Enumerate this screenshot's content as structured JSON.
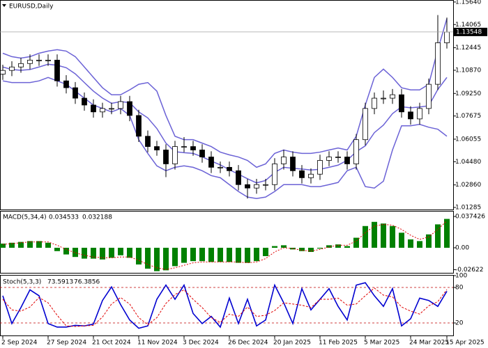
{
  "chart_data": [
    {
      "type": "candlestick",
      "title": "EURUSD,Daily",
      "open": [
        1.106,
        1.1086,
        1.111,
        1.1134,
        1.1158,
        1.1158,
        1.1158,
        1.1013,
        1.0965,
        1.0892,
        1.0844,
        1.0796,
        1.082,
        1.082,
        1.0868,
        1.0771,
        1.0626,
        1.0554,
        1.053,
        1.0433,
        1.0554,
        1.0554,
        1.053,
        1.0481,
        1.0409,
        1.0409,
        1.0385,
        1.0288,
        1.0264,
        1.0288,
        1.0288,
        1.0433,
        1.0481,
        1.0385,
        1.0336,
        1.0361,
        1.0457,
        1.0481,
        1.0481,
        1.0433,
        1.0602,
        1.082,
        1.0892,
        1.0892,
        1.0916,
        1.0796,
        1.0747,
        1.082,
        1.0989,
        1.1279
      ],
      "high": [
        1.1126,
        1.115,
        1.1174,
        1.1198,
        1.1198,
        1.1198,
        1.1198,
        1.1053,
        1.1005,
        1.0932,
        1.0884,
        1.086,
        1.086,
        1.0908,
        1.0908,
        1.0811,
        1.0666,
        1.0594,
        1.057,
        1.0594,
        1.062,
        1.0594,
        1.057,
        1.0521,
        1.0449,
        1.0449,
        1.0425,
        1.0328,
        1.0328,
        1.0328,
        1.0473,
        1.0532,
        1.0521,
        1.0425,
        1.0401,
        1.0497,
        1.0521,
        1.0521,
        1.0521,
        1.0642,
        1.086,
        1.0932,
        1.0946,
        1.0956,
        1.0956,
        1.0836,
        1.086,
        1.1029,
        1.1473,
        1.1455
      ],
      "low": [
        1.102,
        1.1046,
        1.107,
        1.1094,
        1.1118,
        1.1118,
        1.0973,
        1.0925,
        1.0852,
        1.0804,
        1.0756,
        1.0756,
        1.078,
        1.078,
        1.0731,
        1.0586,
        1.0514,
        1.049,
        1.034,
        1.0393,
        1.0514,
        1.049,
        1.0441,
        1.0369,
        1.0369,
        1.0345,
        1.0248,
        1.0191,
        1.0224,
        1.0248,
        1.0248,
        1.0393,
        1.0345,
        1.0296,
        1.0296,
        1.0321,
        1.0417,
        1.0441,
        1.0393,
        1.0393,
        1.0562,
        1.078,
        1.0852,
        1.0852,
        1.0756,
        1.0707,
        1.0707,
        1.078,
        1.0949,
        1.1239
      ],
      "close": [
        1.1086,
        1.111,
        1.1134,
        1.1158,
        1.1158,
        1.1158,
        1.1013,
        1.0965,
        1.0892,
        1.0844,
        1.0796,
        1.082,
        1.082,
        1.0868,
        1.0771,
        1.0626,
        1.0554,
        1.053,
        1.0433,
        1.0554,
        1.0554,
        1.053,
        1.0481,
        1.0409,
        1.0409,
        1.0385,
        1.0288,
        1.0264,
        1.0288,
        1.0288,
        1.0433,
        1.0481,
        1.0385,
        1.0336,
        1.0361,
        1.0457,
        1.0481,
        1.0481,
        1.0433,
        1.0602,
        1.082,
        1.0892,
        1.0892,
        1.0916,
        1.0796,
        1.0747,
        1.082,
        1.0989,
        1.1279,
        1.13548
      ],
      "bands": [
        {
          "color": "#6b62d6",
          "values": [
            1.1206,
            1.1182,
            1.1172,
            1.1182,
            1.1206,
            1.1221,
            1.1231,
            1.1221,
            1.1182,
            1.111,
            1.1037,
            1.0965,
            1.0916,
            1.0916,
            1.095,
            1.0989,
            1.1001,
            1.0941,
            1.0771,
            1.0626,
            1.0602,
            1.0602,
            1.0578,
            1.0554,
            1.0515,
            1.0496,
            1.0481,
            1.0457,
            1.0409,
            1.0433,
            1.0506,
            1.053,
            1.0515,
            1.0506,
            1.0506,
            1.0515,
            1.053,
            1.0544,
            1.053,
            1.0626,
            1.0844,
            1.1037,
            1.1095,
            1.1037,
            1.0965,
            1.095,
            1.095,
            1.0989,
            1.1231,
            1.1448
          ]
        },
        {
          "color": "#6b62d6",
          "values": [
            1.111,
            1.1092,
            1.1087,
            1.1092,
            1.111,
            1.1129,
            1.1122,
            1.1105,
            1.1062,
            1.1001,
            1.0941,
            1.0893,
            1.0856,
            1.0868,
            1.0861,
            1.0796,
            1.0754,
            1.068,
            1.0578,
            1.0518,
            1.0511,
            1.0506,
            1.0482,
            1.0453,
            1.0426,
            1.0392,
            1.0361,
            1.0329,
            1.03,
            1.0317,
            1.0373,
            1.0409,
            1.0402,
            1.0397,
            1.039,
            1.0395,
            1.0409,
            1.0424,
            1.0458,
            1.0518,
            1.0559,
            1.0651,
            1.0704,
            1.0784,
            1.0832,
            1.0825,
            1.083,
            1.0839,
            1.0953,
            1.1037
          ]
        },
        {
          "color": "#6b62d6",
          "values": [
            1.1013,
            1.1001,
            1.1001,
            1.1001,
            1.1013,
            1.1037,
            1.1013,
            1.0989,
            1.0941,
            1.0892,
            1.0844,
            1.082,
            1.0796,
            1.082,
            1.0771,
            1.0602,
            1.0506,
            1.0419,
            1.0385,
            1.0409,
            1.0419,
            1.0409,
            1.0385,
            1.0351,
            1.0336,
            1.0288,
            1.024,
            1.0201,
            1.0191,
            1.0201,
            1.024,
            1.0288,
            1.0288,
            1.0288,
            1.0274,
            1.0274,
            1.0288,
            1.0303,
            1.0385,
            1.0409,
            1.0274,
            1.0264,
            1.0312,
            1.053,
            1.0699,
            1.0699,
            1.0709,
            1.0689,
            1.0675,
            1.0626
          ]
        }
      ],
      "ylim": [
        1.0119,
        1.1578
      ],
      "yticks": [
        {
          "value": 1.1564,
          "label": "1.15640"
        },
        {
          "value": 1.14065,
          "label": "1.14065"
        },
        {
          "value": 1.12445,
          "label": "1.12445"
        },
        {
          "value": 1.1087,
          "label": "1.10870"
        },
        {
          "value": 1.0925,
          "label": "1.09250"
        },
        {
          "value": 1.07675,
          "label": "1.07675"
        },
        {
          "value": 1.06055,
          "label": "1.06055"
        },
        {
          "value": 1.0448,
          "label": "1.04480"
        },
        {
          "value": 1.0286,
          "label": "1.02860"
        },
        {
          "value": 1.01285,
          "label": "1.01285"
        }
      ]
    },
    {
      "type": "bar",
      "title": "MACD(5,34,4)",
      "series": [
        {
          "color": "#008000",
          "values": [
            0.005,
            0.006,
            0.007,
            0.008,
            0.008,
            0.006,
            -0.004,
            -0.008,
            -0.011,
            -0.013,
            -0.013,
            -0.014,
            -0.012,
            -0.009,
            -0.012,
            -0.02,
            -0.025,
            -0.028,
            -0.027,
            -0.022,
            -0.018,
            -0.016,
            -0.016,
            -0.017,
            -0.017,
            -0.017,
            -0.018,
            -0.018,
            -0.016,
            -0.01,
            0.002,
            0.003,
            -0.002,
            -0.004,
            -0.005,
            -0.001,
            0.003,
            0.004,
            0.002,
            0.012,
            0.026,
            0.031,
            0.029,
            0.026,
            0.018,
            0.01,
            0.008,
            0.016,
            0.028,
            0.034533
          ]
        },
        {
          "color": "#e00000",
          "type": "line",
          "values": [
            0.004,
            0.005,
            0.006,
            0.007,
            0.007,
            0.007,
            0.003,
            -0.002,
            -0.006,
            -0.009,
            -0.011,
            -0.012,
            -0.012,
            -0.011,
            -0.011,
            -0.015,
            -0.02,
            -0.024,
            -0.026,
            -0.024,
            -0.021,
            -0.018,
            -0.017,
            -0.017,
            -0.017,
            -0.017,
            -0.017,
            -0.018,
            -0.017,
            -0.013,
            -0.005,
            0.0,
            -0.001,
            -0.003,
            -0.004,
            -0.002,
            0.001,
            0.003,
            0.003,
            0.008,
            0.018,
            0.026,
            0.028,
            0.027,
            0.022,
            0.015,
            0.01,
            0.013,
            0.022,
            0.032188
          ]
        }
      ],
      "ylim": [
        -0.03,
        0.0433
      ],
      "yticks": [
        0.037426,
        {
          "value": 0,
          "label": "0.00"
        },
        -0.02622
      ]
    },
    {
      "type": "line",
      "title": "Stoch(5,3,3)",
      "categories": [
        "2 Sep 2024",
        null,
        null,
        null,
        null,
        "27 Sep 2024",
        null,
        null,
        null,
        null,
        "21 Oct 2024",
        null,
        null,
        null,
        null,
        "11 Nov 2024",
        null,
        null,
        null,
        null,
        "3 Dec 2024",
        null,
        null,
        null,
        null,
        "26 Dec 2024",
        null,
        null,
        null,
        null,
        "20 Jan 2025",
        null,
        null,
        null,
        null,
        "11 Feb 2025",
        null,
        null,
        null,
        null,
        "5 Mar 2025",
        null,
        null,
        null,
        null,
        "24 Mar 2025",
        null,
        null,
        null,
        "15 Apr 2025"
      ],
      "series": [
        {
          "color": "#0000d0",
          "values": [
            66,
            19,
            46,
            76,
            66,
            19,
            13,
            13,
            16,
            15,
            18,
            58,
            81,
            51,
            25,
            11,
            15,
            60,
            84,
            60,
            84,
            36,
            19,
            31,
            13,
            62,
            19,
            60,
            15,
            25,
            84,
            54,
            19,
            78,
            42,
            60,
            78,
            48,
            25,
            84,
            88,
            66,
            48,
            78,
            15,
            27,
            62,
            58,
            48,
            73.5913
          ]
        },
        {
          "color": "#e00000",
          "dashed": true,
          "values": [
            60,
            42,
            40,
            47,
            63,
            54,
            33,
            15,
            14,
            15,
            16,
            30,
            52,
            63,
            52,
            29,
            17,
            29,
            53,
            68,
            76,
            60,
            46,
            29,
            21,
            35,
            31,
            47,
            31,
            33,
            41,
            54,
            52,
            50,
            46,
            60,
            60,
            62,
            50,
            52,
            66,
            79,
            67,
            64,
            47,
            40,
            35,
            49,
            56,
            76.3856
          ]
        }
      ],
      "levels": [
        80,
        20
      ],
      "levels_color": "#c00000",
      "ylim": [
        0,
        100
      ],
      "yticks": [
        100,
        80,
        20
      ]
    }
  ]
}
